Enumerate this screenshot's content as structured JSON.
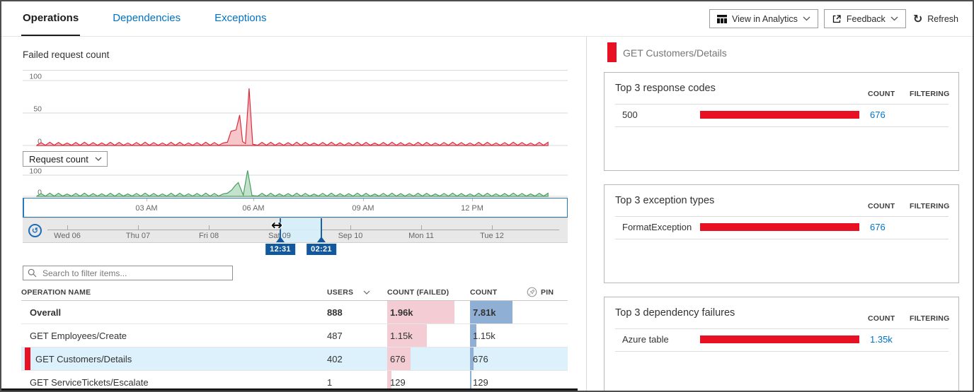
{
  "header": {
    "tabs": [
      {
        "label": "Operations",
        "active": true
      },
      {
        "label": "Dependencies",
        "active": false
      },
      {
        "label": "Exceptions",
        "active": false
      }
    ],
    "actions": {
      "view_in_analytics": "View in Analytics",
      "feedback": "Feedback",
      "refresh": "Refresh"
    }
  },
  "left": {
    "failed_chart_title": "Failed request count",
    "metric_dropdown_value": "Request count",
    "time_axis_ticks": [
      "03 AM",
      "06 AM",
      "09 AM",
      "12 PM"
    ],
    "brush": {
      "days": [
        "Wed 06",
        "Thu 07",
        "Fri 08",
        "Sat 09",
        "Sep 10",
        "Mon 11",
        "Tue 12"
      ],
      "selection_start_label": "12:31",
      "selection_end_label": "02:21"
    },
    "search_placeholder": "Search to filter items...",
    "table": {
      "columns": {
        "name": "OPERATION NAME",
        "users": "USERS",
        "failed": "COUNT (FAILED)",
        "count": "COUNT",
        "pin": "PIN"
      },
      "rows": [
        {
          "name": "Overall",
          "users": "888",
          "failed": "1.96k",
          "failed_num": 1960,
          "count": "7.81k",
          "count_num": 7810,
          "bold": true,
          "selected": false
        },
        {
          "name": "GET Employees/Create",
          "users": "487",
          "failed": "1.15k",
          "failed_num": 1150,
          "count": "1.15k",
          "count_num": 1150,
          "bold": false,
          "selected": false
        },
        {
          "name": "GET Customers/Details",
          "users": "402",
          "failed": "676",
          "failed_num": 676,
          "count": "676",
          "count_num": 676,
          "bold": false,
          "selected": true
        },
        {
          "name": "GET ServiceTickets/Escalate",
          "users": "1",
          "failed": "129",
          "failed_num": 129,
          "count": "129",
          "count_num": 129,
          "bold": false,
          "selected": false
        }
      ]
    }
  },
  "right": {
    "selected_operation": "GET Customers/Details",
    "cards": [
      {
        "title": "Top 3 response codes",
        "count_header": "COUNT",
        "filtering_header": "FILTERING",
        "rows": [
          {
            "label": "500",
            "count": "676",
            "count_num": 676
          }
        ]
      },
      {
        "title": "Top 3 exception types",
        "count_header": "COUNT",
        "filtering_header": "FILTERING",
        "rows": [
          {
            "label": "FormatException",
            "count": "676",
            "count_num": 676
          }
        ]
      },
      {
        "title": "Top 3 dependency failures",
        "count_header": "COUNT",
        "filtering_header": "FILTERING",
        "rows": [
          {
            "label": "Azure table",
            "count": "1.35k",
            "count_num": 1350
          }
        ]
      }
    ]
  },
  "chart_data": [
    {
      "type": "area",
      "title": "Failed request count",
      "color": "#dd2c3b",
      "fill": "#f6bcc1",
      "ylim": [
        0,
        100
      ],
      "yticks": [
        0,
        50,
        100
      ],
      "x_ticks": [
        "03 AM",
        "06 AM",
        "09 AM",
        "12 PM"
      ],
      "x_tick_hours": [
        3,
        6,
        9,
        12
      ],
      "hours_end": 14.2,
      "baseline_amplitude": 5,
      "baseline_step": 0.12,
      "spikes": [
        [
          5.28,
          5
        ],
        [
          5.38,
          22
        ],
        [
          5.52,
          24
        ],
        [
          5.62,
          47
        ],
        [
          5.7,
          6
        ],
        [
          5.78,
          3
        ],
        [
          5.88,
          88
        ],
        [
          5.98,
          2
        ]
      ]
    },
    {
      "type": "area",
      "title": "Request count",
      "color": "#4a9e5f",
      "fill": "#b9dcc4",
      "ylim": [
        0,
        100
      ],
      "yticks": [
        0,
        100
      ],
      "x_ticks": [
        "03 AM",
        "06 AM",
        "09 AM",
        "12 PM"
      ],
      "x_tick_hours": [
        3,
        6,
        9,
        12
      ],
      "hours_end": 14.2,
      "baseline_amplitude": 15,
      "baseline_step": 0.12,
      "spikes": [
        [
          5.28,
          15
        ],
        [
          5.4,
          30
        ],
        [
          5.5,
          52
        ],
        [
          5.58,
          65
        ],
        [
          5.64,
          40
        ],
        [
          5.72,
          6
        ],
        [
          5.84,
          122
        ],
        [
          5.96,
          4
        ]
      ]
    },
    {
      "type": "timeline-brush",
      "days": [
        "Wed 06",
        "Thu 07",
        "Fri 08",
        "Sat 09",
        "Sep 10",
        "Mon 11",
        "Tue 12"
      ],
      "selection": {
        "from": "12:31",
        "to": "02:21"
      }
    }
  ]
}
